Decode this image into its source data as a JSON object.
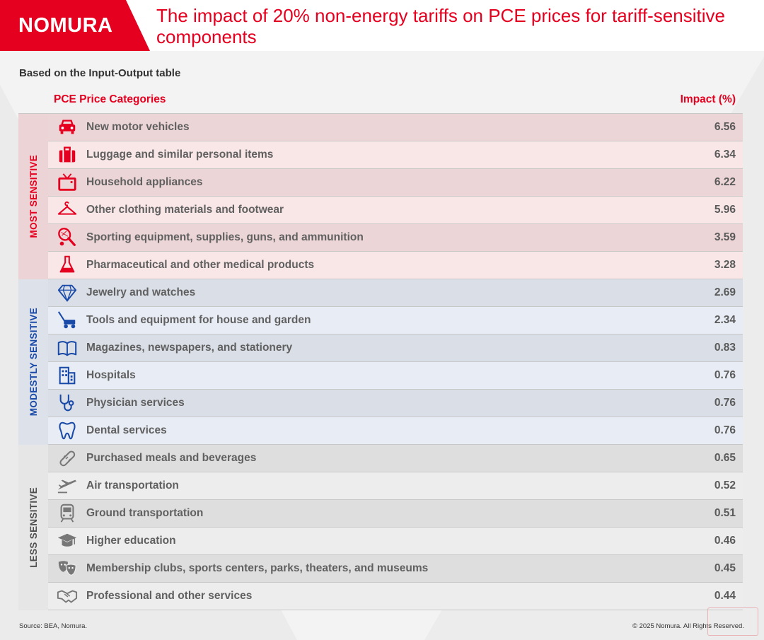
{
  "header": {
    "logo": "NOMURA",
    "title": "The impact of 20% non-energy tariffs on PCE prices for tariff-sensitive components"
  },
  "subtitle": "Based on the Input-Output table",
  "columns": {
    "category": "PCE Price Categories",
    "impact": "Impact (%)"
  },
  "colors": {
    "brand_red": "#e5001f",
    "modest_blue": "#1a4aa8",
    "less_gray": "#505050"
  },
  "chart_data": {
    "type": "table",
    "title": "The impact of 20% non-energy tariffs on PCE prices for tariff-sensitive components",
    "columns": [
      "PCE Price Categories",
      "Impact (%)"
    ],
    "groups": [
      {
        "label": "MOST SENSITIVE",
        "rows": [
          {
            "icon": "car-icon",
            "category": "New motor vehicles",
            "impact": "6.56"
          },
          {
            "icon": "luggage-icon",
            "category": "Luggage and similar personal items",
            "impact": "6.34"
          },
          {
            "icon": "tv-icon",
            "category": "Household appliances",
            "impact": "6.22"
          },
          {
            "icon": "hanger-icon",
            "category": "Other clothing materials and footwear",
            "impact": "5.96"
          },
          {
            "icon": "tennis-racket-icon",
            "category": "Sporting equipment, supplies, guns, and ammunition",
            "impact": "3.59"
          },
          {
            "icon": "flask-icon",
            "category": "Pharmaceutical and other medical products",
            "impact": "3.28"
          }
        ]
      },
      {
        "label": "MODESTLY SENSITIVE",
        "rows": [
          {
            "icon": "diamond-icon",
            "category": "Jewelry and watches",
            "impact": "2.69"
          },
          {
            "icon": "lawnmower-icon",
            "category": "Tools and equipment for house and garden",
            "impact": "2.34"
          },
          {
            "icon": "book-icon",
            "category": "Magazines, newspapers, and stationery",
            "impact": "0.83"
          },
          {
            "icon": "building-icon",
            "category": "Hospitals",
            "impact": "0.76"
          },
          {
            "icon": "stethoscope-icon",
            "category": "Physician services",
            "impact": "0.76"
          },
          {
            "icon": "tooth-icon",
            "category": "Dental services",
            "impact": "0.76"
          }
        ]
      },
      {
        "label": "LESS SENSITIVE",
        "rows": [
          {
            "icon": "hotdog-icon",
            "category": "Purchased meals and beverages",
            "impact": "0.65"
          },
          {
            "icon": "airplane-icon",
            "category": "Air transportation",
            "impact": "0.52"
          },
          {
            "icon": "train-icon",
            "category": "Ground transportation",
            "impact": "0.51"
          },
          {
            "icon": "graduation-cap-icon",
            "category": "Higher education",
            "impact": "0.46"
          },
          {
            "icon": "theater-masks-icon",
            "category": "Membership clubs, sports centers, parks, theaters, and museums",
            "impact": "0.45"
          },
          {
            "icon": "handshake-icon",
            "category": "Professional and other services",
            "impact": "0.44"
          }
        ]
      }
    ]
  },
  "footer": {
    "source": "Source: BEA, Nomura.",
    "copyright": "© 2025 Nomura. All Rights Reserved."
  }
}
